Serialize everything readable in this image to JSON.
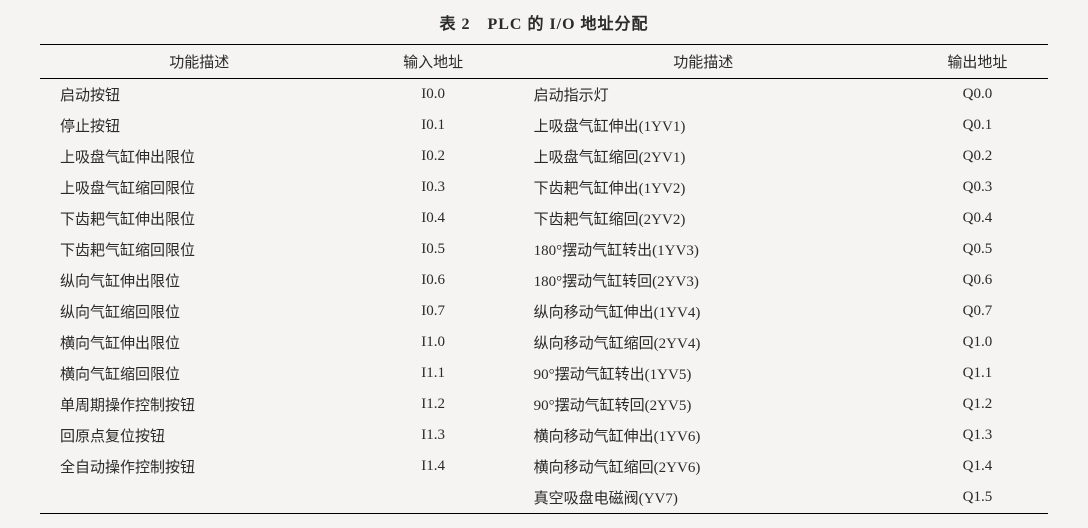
{
  "caption": "表 2　PLC 的 I/O 地址分配",
  "headers": {
    "func_left": "功能描述",
    "addr_in": "输入地址",
    "func_right": "功能描述",
    "addr_out": "输出地址"
  },
  "rows": [
    {
      "fl": "启动按钮",
      "ai": "I0.0",
      "fr": "启动指示灯",
      "ao": "Q0.0"
    },
    {
      "fl": "停止按钮",
      "ai": "I0.1",
      "fr": "上吸盘气缸伸出(1YV1)",
      "ao": "Q0.1"
    },
    {
      "fl": "上吸盘气缸伸出限位",
      "ai": "I0.2",
      "fr": "上吸盘气缸缩回(2YV1)",
      "ao": "Q0.2"
    },
    {
      "fl": "上吸盘气缸缩回限位",
      "ai": "I0.3",
      "fr": "下齿耙气缸伸出(1YV2)",
      "ao": "Q0.3"
    },
    {
      "fl": "下齿耙气缸伸出限位",
      "ai": "I0.4",
      "fr": "下齿耙气缸缩回(2YV2)",
      "ao": "Q0.4"
    },
    {
      "fl": "下齿耙气缸缩回限位",
      "ai": "I0.5",
      "fr": "180°摆动气缸转出(1YV3)",
      "ao": "Q0.5"
    },
    {
      "fl": "纵向气缸伸出限位",
      "ai": "I0.6",
      "fr": "180°摆动气缸转回(2YV3)",
      "ao": "Q0.6"
    },
    {
      "fl": "纵向气缸缩回限位",
      "ai": "I0.7",
      "fr": "纵向移动气缸伸出(1YV4)",
      "ao": "Q0.7"
    },
    {
      "fl": "横向气缸伸出限位",
      "ai": "I1.0",
      "fr": "纵向移动气缸缩回(2YV4)",
      "ao": "Q1.0"
    },
    {
      "fl": "横向气缸缩回限位",
      "ai": "I1.1",
      "fr": "90°摆动气缸转出(1YV5)",
      "ao": "Q1.1"
    },
    {
      "fl": "单周期操作控制按钮",
      "ai": "I1.2",
      "fr": "90°摆动气缸转回(2YV5)",
      "ao": "Q1.2"
    },
    {
      "fl": "回原点复位按钮",
      "ai": "I1.3",
      "fr": "横向移动气缸伸出(1YV6)",
      "ao": "Q1.3"
    },
    {
      "fl": "全自动操作控制按钮",
      "ai": "I1.4",
      "fr": "横向移动气缸缩回(2YV6)",
      "ao": "Q1.4"
    },
    {
      "fl": "",
      "ai": "",
      "fr": "真空吸盘电磁阀(YV7)",
      "ao": "Q1.5"
    }
  ],
  "style": {
    "background_color": "#f5f4f2",
    "text_color": "#2a2a2a",
    "border_color": "#000000",
    "font_family": "SimSun",
    "caption_fontsize": 16,
    "body_fontsize": 15,
    "top_border_width": 1.5,
    "header_bottom_border_width": 1,
    "bottom_border_width": 1.5
  }
}
